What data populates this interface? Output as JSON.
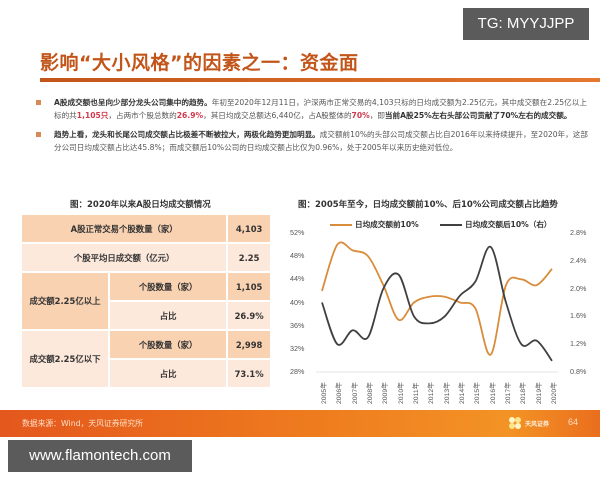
{
  "watermarks": {
    "top": "TG: MYYJJPP",
    "bottom": "www.flamontech.com"
  },
  "slide": {
    "title": "影响“大小风格”的因素之一：资金面",
    "bullets": [
      {
        "lead": "A股成交额也呈向少部分龙头公司集中的趋势。",
        "t1": "年初至2020年12月11日，沪深两市正常交易的4,103只标的日均成交额为2.25亿元，其中成交额在2.25亿以上标的共",
        "h1": "1,105只",
        "t2": "，占两市个股总数的",
        "h2": "26.9%",
        "t3": "，其日均成交总额达6,440亿，占A股整体的",
        "h3": "70%",
        "t4": "，即",
        "tail": "当前A股25%左右头部公司贡献了70%左右的成交额。"
      },
      {
        "lead": "趋势上看，龙头和长尾公司成交额占比极差不断被拉大，两极化趋势更加明显。",
        "text": "成交额前10%的头部公司成交额占比自2016年以来持续提升，至2020年，这部分公司日均成交额占比达45.8%；而成交额后10%公司的日均成交额占比仅为0.96%，处于2005年以来历史绝对低位。"
      }
    ],
    "table": {
      "title": "图：2020年以来A股日均成交额情况",
      "rows": [
        {
          "label": "A股正常交易个股数量（家）",
          "value": "4,103"
        },
        {
          "label": "个股平均日成交额（亿元）",
          "value": "2.25"
        }
      ],
      "groups": [
        {
          "label": "成交额2.25亿以上",
          "count_label": "个股数量（家）",
          "count": "1,105",
          "share_label": "占比",
          "share": "26.9%"
        },
        {
          "label": "成交额2.25亿以下",
          "count_label": "个股数量（家）",
          "count": "2,998",
          "share_label": "占比",
          "share": "73.1%"
        }
      ]
    },
    "footer": {
      "source": "数据来源：Wind，天风证券研究所",
      "logo_text": "天风证券",
      "page": "64"
    }
  },
  "chart_data": {
    "type": "line",
    "title": "图：2005年至今，日均成交额前10%、后10%公司成交额占比趋势",
    "x": [
      "2005年",
      "2006年",
      "2007年",
      "2008年",
      "2009年",
      "2010年",
      "2011年",
      "2012年",
      "2013年",
      "2014年",
      "2015年",
      "2016年",
      "2017年",
      "2018年",
      "2019年",
      "2020年"
    ],
    "series": [
      {
        "name": "日均成交额前10%",
        "axis": "left",
        "color": "#d98c3a",
        "values": [
          42,
          50,
          49,
          48,
          43,
          37,
          40,
          41,
          41,
          40,
          39,
          31,
          43,
          44,
          43,
          45.8
        ]
      },
      {
        "name": "日均成交额后10%（右）",
        "axis": "right",
        "color": "#404040",
        "values": [
          1.8,
          1.2,
          1.4,
          1.3,
          2.0,
          2.2,
          1.6,
          1.5,
          1.6,
          1.9,
          2.1,
          2.6,
          1.8,
          1.2,
          1.25,
          0.96
        ]
      }
    ],
    "left_axis": {
      "ticks": [
        "52%",
        "48%",
        "44%",
        "40%",
        "36%",
        "32%",
        "28%"
      ],
      "ylim": [
        28,
        52
      ]
    },
    "right_axis": {
      "ticks": [
        "2.8%",
        "2.4%",
        "2.0%",
        "1.6%",
        "1.2%",
        "0.8%"
      ],
      "ylim": [
        0.8,
        2.8
      ]
    },
    "legend_position": "top",
    "grid": false
  }
}
